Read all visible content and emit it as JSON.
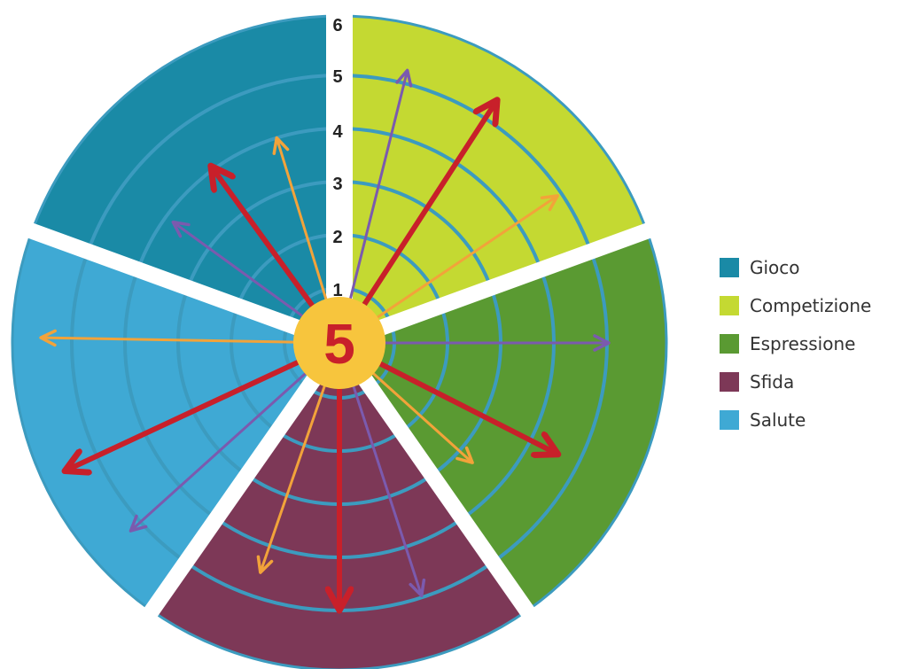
{
  "diagram": {
    "center_value": "5",
    "scale_labels": [
      "1",
      "2",
      "3",
      "4",
      "5",
      "6"
    ],
    "sectors": [
      {
        "name": "Gioco",
        "color": "#1a8aa6"
      },
      {
        "name": "Competizione",
        "color": "#c4d932"
      },
      {
        "name": "Espressione",
        "color": "#5a9a32"
      },
      {
        "name": "Sfida",
        "color": "#7d3857"
      },
      {
        "name": "Salute",
        "color": "#3fa9d4"
      }
    ],
    "arrow_colors": {
      "red": "#c8202a",
      "orange": "#f2a33a",
      "purple": "#7b5aae"
    },
    "ring_color": "#3c9bbf",
    "center_color": "#f7c53d"
  },
  "legend": {
    "items": [
      {
        "label": "Gioco",
        "color": "#1a8aa6"
      },
      {
        "label": "Competizione",
        "color": "#c4d932"
      },
      {
        "label": "Espressione",
        "color": "#5a9a32"
      },
      {
        "label": "Sfida",
        "color": "#7d3857"
      },
      {
        "label": "Salute",
        "color": "#3fa9d4"
      }
    ]
  }
}
